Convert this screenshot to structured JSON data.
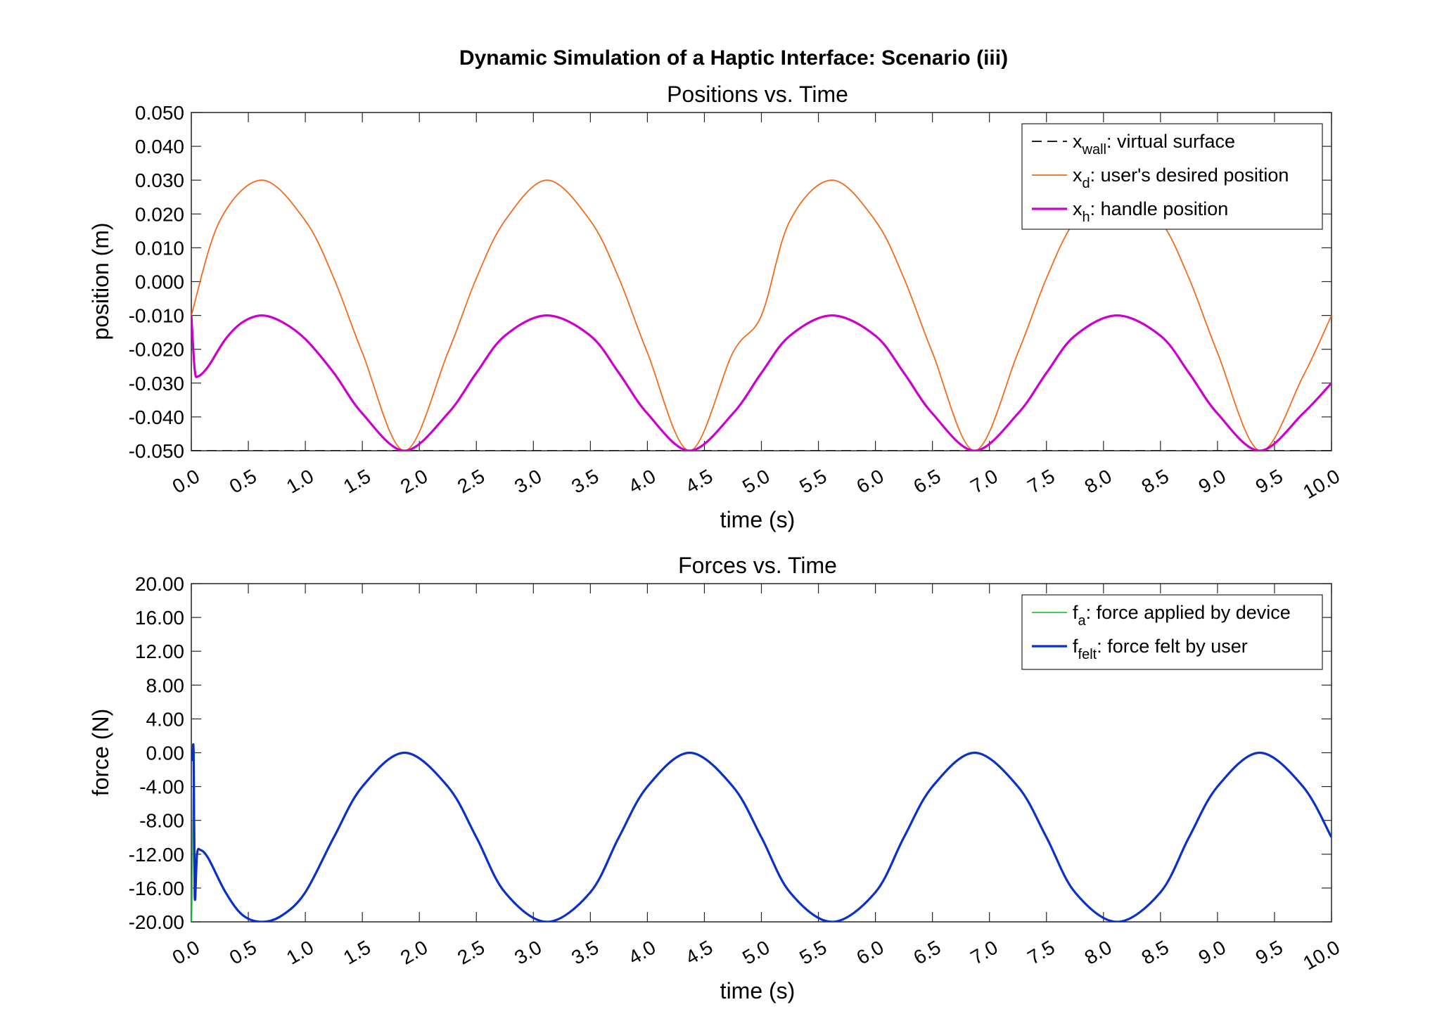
{
  "figure_title": "Dynamic Simulation of a Haptic Interface: Scenario (iii)",
  "chart_data": [
    {
      "type": "line",
      "title": "Positions vs. Time",
      "xlabel": "time (s)",
      "ylabel": "position (m)",
      "xlim": [
        0,
        10
      ],
      "ylim": [
        -0.05,
        0.05
      ],
      "x_ticks": [
        "0.0",
        "0.5",
        "1.0",
        "1.5",
        "2.0",
        "2.5",
        "3.0",
        "3.5",
        "4.0",
        "4.5",
        "5.0",
        "5.5",
        "6.0",
        "6.5",
        "7.0",
        "7.5",
        "8.0",
        "8.5",
        "9.0",
        "9.5",
        "10.0"
      ],
      "y_ticks": [
        "0.050",
        "0.040",
        "0.030",
        "0.020",
        "0.010",
        "0.000",
        "-0.010",
        "-0.020",
        "-0.030",
        "-0.040",
        "-0.050"
      ],
      "grid": false,
      "legend_position": "top-right",
      "series": [
        {
          "name": "x",
          "name_subscript": "wall",
          "name_suffix": ": virtual surface",
          "color": "#000000",
          "style": "dashed",
          "x": [
            0,
            10
          ],
          "y": [
            -0.05,
            -0.05
          ]
        },
        {
          "name": "x",
          "name_subscript": "d",
          "name_suffix": ": user's desired position",
          "color": "#f26b1d",
          "style": "solid",
          "x": [
            0,
            0.25,
            0.62,
            1.0,
            1.25,
            1.5,
            1.87,
            2.25,
            2.5,
            2.75,
            3.12,
            3.5,
            3.75,
            4.0,
            4.37,
            4.75,
            5.0,
            5.25,
            5.62,
            6.0,
            6.25,
            6.5,
            6.87,
            7.25,
            7.5,
            7.75,
            8.12,
            8.5,
            8.75,
            9.0,
            9.37,
            9.75,
            10.0
          ],
          "y": [
            -0.01,
            0.018,
            0.03,
            0.018,
            0.001,
            -0.021,
            -0.05,
            -0.021,
            0.001,
            0.018,
            0.03,
            0.018,
            0.001,
            -0.021,
            -0.05,
            -0.021,
            -0.01,
            0.018,
            0.03,
            0.018,
            0.001,
            -0.021,
            -0.05,
            -0.021,
            0.001,
            0.018,
            0.03,
            0.018,
            0.001,
            -0.021,
            -0.05,
            -0.028,
            -0.01
          ]
        },
        {
          "name": "x",
          "name_subscript": "h",
          "name_suffix": ": handle position",
          "color": "#cc00cc",
          "style": "solid",
          "x": [
            0,
            0.03,
            0.06,
            0.15,
            0.3,
            0.45,
            0.62,
            0.8,
            1.0,
            1.25,
            1.5,
            1.87,
            2.25,
            2.5,
            2.75,
            3.12,
            3.5,
            3.75,
            4.0,
            4.37,
            4.75,
            5.0,
            5.25,
            5.62,
            6.0,
            6.25,
            6.5,
            6.87,
            7.25,
            7.5,
            7.75,
            8.12,
            8.5,
            8.75,
            9.0,
            9.37,
            9.75,
            10.0
          ],
          "y": [
            -0.01,
            -0.026,
            -0.028,
            -0.025,
            -0.017,
            -0.012,
            -0.01,
            -0.012,
            -0.017,
            -0.027,
            -0.039,
            -0.05,
            -0.039,
            -0.027,
            -0.016,
            -0.01,
            -0.016,
            -0.027,
            -0.039,
            -0.05,
            -0.039,
            -0.027,
            -0.016,
            -0.01,
            -0.016,
            -0.027,
            -0.039,
            -0.05,
            -0.039,
            -0.027,
            -0.016,
            -0.01,
            -0.016,
            -0.027,
            -0.039,
            -0.05,
            -0.039,
            -0.03
          ]
        }
      ]
    },
    {
      "type": "line",
      "title": "Forces vs. Time",
      "xlabel": "time (s)",
      "ylabel": "force (N)",
      "xlim": [
        0,
        10
      ],
      "ylim": [
        -20,
        20
      ],
      "x_ticks": [
        "0.0",
        "0.5",
        "1.0",
        "1.5",
        "2.0",
        "2.5",
        "3.0",
        "3.5",
        "4.0",
        "4.5",
        "5.0",
        "5.5",
        "6.0",
        "6.5",
        "7.0",
        "7.5",
        "8.0",
        "8.5",
        "9.0",
        "9.5",
        "10.0"
      ],
      "y_ticks": [
        "20.00",
        "16.00",
        "12.00",
        "8.00",
        "4.00",
        "0.00",
        "-4.00",
        "-8.00",
        "-12.00",
        "-16.00",
        "-20.00"
      ],
      "grid": false,
      "legend_position": "top-right",
      "series": [
        {
          "name": "f",
          "name_subscript": "a",
          "name_suffix": ": force applied by device",
          "color": "#22cc44",
          "style": "solid",
          "x": [
            0,
            0.005,
            0.015,
            0.025,
            0.035,
            0.05,
            0.08
          ],
          "y": [
            -20,
            -18,
            -6,
            0,
            -17,
            -12,
            -11.5
          ]
        },
        {
          "name": "f",
          "name_subscript": "felt",
          "name_suffix": ": force felt by user",
          "color": "#0a2fcc",
          "style": "solid",
          "x": [
            0.01,
            0.02,
            0.03,
            0.05,
            0.08,
            0.15,
            0.3,
            0.45,
            0.62,
            0.8,
            1.0,
            1.25,
            1.5,
            1.87,
            2.25,
            2.5,
            2.75,
            3.12,
            3.5,
            3.75,
            4.0,
            4.37,
            4.75,
            5.0,
            5.25,
            5.62,
            6.0,
            6.25,
            6.5,
            6.87,
            7.25,
            7.5,
            7.75,
            8.12,
            8.5,
            8.75,
            9.0,
            9.37,
            9.75,
            10.0
          ],
          "y": [
            -1,
            0,
            -17,
            -12,
            -11.5,
            -12.5,
            -16.5,
            -19.2,
            -20,
            -19.2,
            -16.5,
            -10,
            -4,
            0,
            -4,
            -10,
            -16.5,
            -20,
            -16.5,
            -10,
            -4,
            0,
            -4,
            -10,
            -16.5,
            -20,
            -16.5,
            -10,
            -4,
            0,
            -4,
            -10,
            -16.5,
            -20,
            -16.5,
            -10,
            -4,
            0,
            -4,
            -10
          ]
        }
      ]
    }
  ]
}
